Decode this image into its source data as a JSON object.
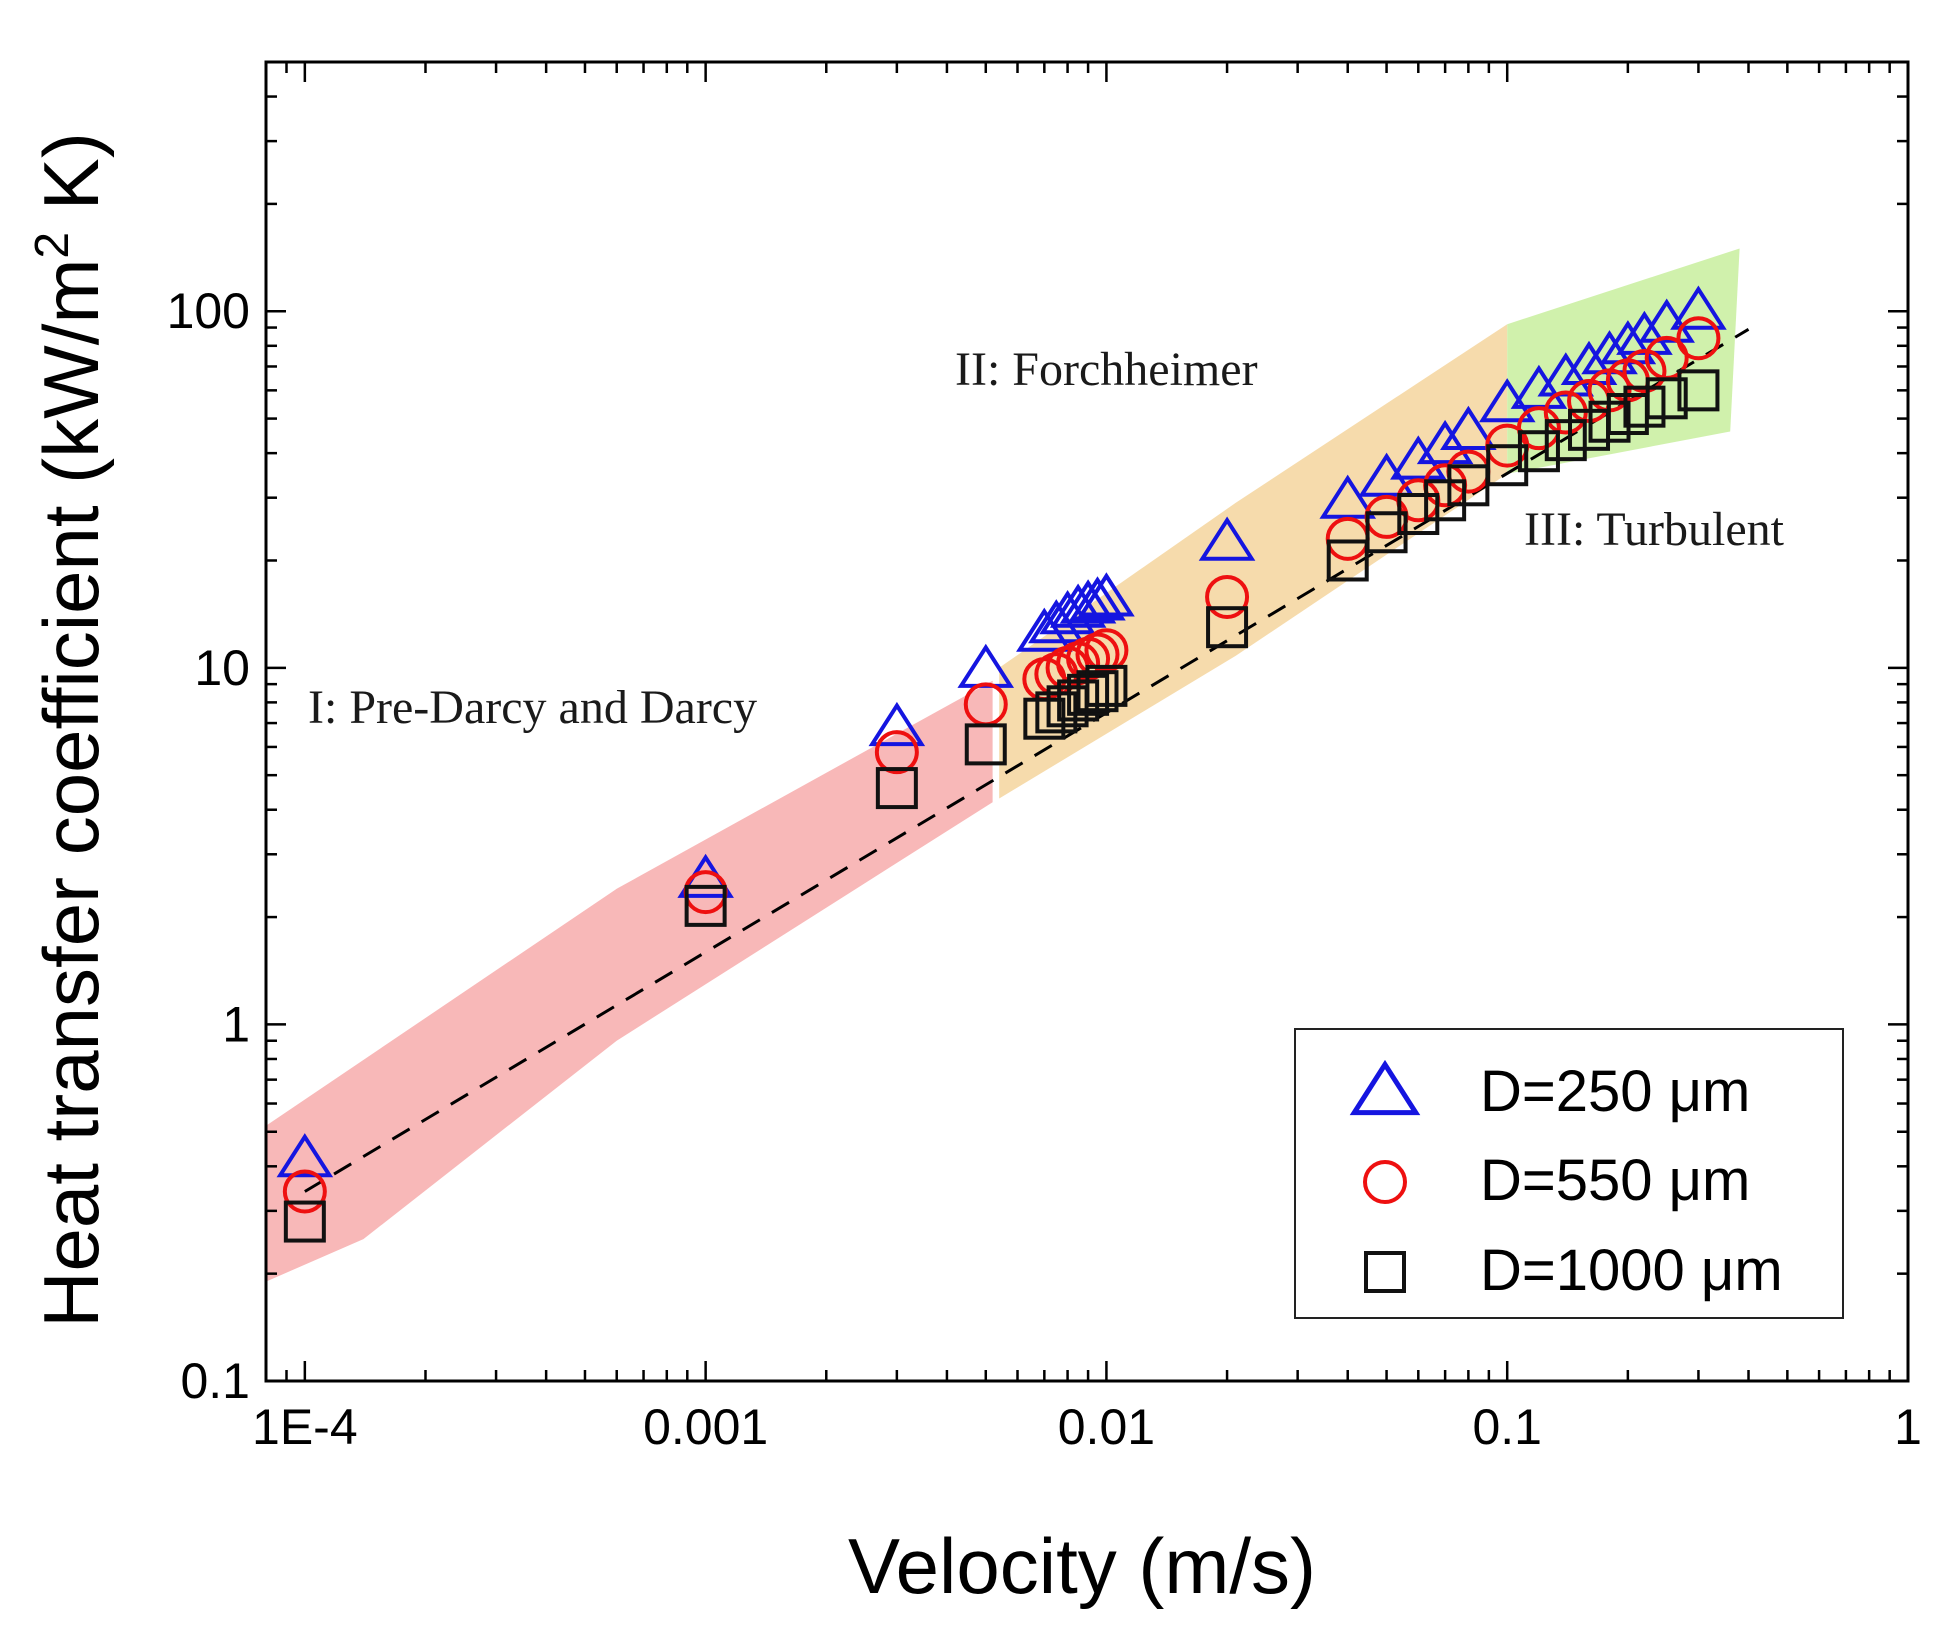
{
  "chart_data": {
    "type": "scatter",
    "x_scale": "log",
    "y_scale": "log",
    "xlabel": "Velocity (m/s)",
    "ylabel": {
      "main": "Heat transfer coefficient (kW/m",
      "sup": "2",
      "tail": " K)"
    },
    "xlim": [
      8e-05,
      1
    ],
    "ylim": [
      0.1,
      500
    ],
    "x_ticks": [
      {
        "value": 0.0001,
        "label": "1E-4"
      },
      {
        "value": 0.001,
        "label": "0.001"
      },
      {
        "value": 0.01,
        "label": "0.01"
      },
      {
        "value": 0.1,
        "label": "0.1"
      },
      {
        "value": 1,
        "label": "1"
      }
    ],
    "y_ticks": [
      {
        "value": 0.1,
        "label": "0.1"
      },
      {
        "value": 1,
        "label": "1"
      },
      {
        "value": 10,
        "label": "10"
      },
      {
        "value": 100,
        "label": "100"
      }
    ],
    "regions": [
      {
        "name": "region-pre-darcy",
        "label": "I: Pre-Darcy and Darcy",
        "color": "#f8b4b4",
        "polygon": [
          [
            8e-05,
            0.52
          ],
          [
            0.0006,
            2.4
          ],
          [
            0.0052,
            9.2
          ],
          [
            0.0052,
            4.2
          ],
          [
            0.0006,
            0.9
          ],
          [
            0.00014,
            0.25
          ],
          [
            8e-05,
            0.19
          ]
        ]
      },
      {
        "name": "region-forchheimer",
        "label": "II: Forchheimer",
        "color": "#f5d9a8",
        "polygon": [
          [
            0.0054,
            10.0
          ],
          [
            0.0054,
            4.3
          ],
          [
            0.021,
            10.8
          ],
          [
            0.1,
            35
          ],
          [
            0.1,
            92
          ],
          [
            0.021,
            29
          ],
          [
            0.0054,
            10.0
          ]
        ]
      },
      {
        "name": "region-turbulent",
        "label": "III: Turbulent",
        "color": "#cdf0a8",
        "polygon": [
          [
            0.1,
            92
          ],
          [
            0.38,
            150
          ],
          [
            0.36,
            46
          ],
          [
            0.1,
            35
          ]
        ]
      }
    ],
    "fit_line": {
      "style": "dashed",
      "points": [
        [
          0.0001,
          0.34
        ],
        [
          0.4,
          89
        ]
      ]
    },
    "series": [
      {
        "name": "D=250 μm",
        "marker": "triangle",
        "color": "#1515e0",
        "x": [
          0.0001,
          0.001,
          0.003,
          0.005,
          0.007,
          0.0075,
          0.008,
          0.0085,
          0.009,
          0.0095,
          0.01,
          0.02,
          0.04,
          0.05,
          0.06,
          0.07,
          0.08,
          0.1,
          0.12,
          0.14,
          0.16,
          0.18,
          0.2,
          0.22,
          0.25,
          0.3
        ],
        "y": [
          0.42,
          2.55,
          6.8,
          9.9,
          12.5,
          13.2,
          14.0,
          14.6,
          15.0,
          15.3,
          15.7,
          22.5,
          29.5,
          34.0,
          38.0,
          42.0,
          46.0,
          55.0,
          60.0,
          65.0,
          70.0,
          75.0,
          80.0,
          85.0,
          92.0,
          100.0
        ]
      },
      {
        "name": "D=550 μm",
        "marker": "circle",
        "color": "#ee1010",
        "x": [
          0.0001,
          0.001,
          0.003,
          0.005,
          0.007,
          0.0075,
          0.008,
          0.0085,
          0.009,
          0.0095,
          0.01,
          0.02,
          0.04,
          0.05,
          0.06,
          0.07,
          0.08,
          0.1,
          0.12,
          0.14,
          0.16,
          0.18,
          0.2,
          0.22,
          0.25,
          0.3
        ],
        "y": [
          0.34,
          2.35,
          5.8,
          7.9,
          9.3,
          9.6,
          10.0,
          10.3,
          10.6,
          10.9,
          11.2,
          15.8,
          23.0,
          26.5,
          29.5,
          32.5,
          35.5,
          42.0,
          47.0,
          52.0,
          56.0,
          60.0,
          64.0,
          68.0,
          74.0,
          84.0
        ]
      },
      {
        "name": "D=1000 μm",
        "marker": "square",
        "color": "#111111",
        "x": [
          0.0001,
          0.001,
          0.003,
          0.005,
          0.007,
          0.0075,
          0.008,
          0.0085,
          0.009,
          0.0095,
          0.01,
          0.02,
          0.04,
          0.05,
          0.06,
          0.07,
          0.08,
          0.1,
          0.12,
          0.14,
          0.16,
          0.18,
          0.2,
          0.22,
          0.25,
          0.3
        ],
        "y": [
          0.28,
          2.15,
          4.6,
          6.1,
          7.2,
          7.5,
          7.8,
          8.1,
          8.4,
          8.6,
          8.9,
          13.0,
          20.0,
          24.0,
          27.0,
          29.5,
          32.5,
          37.0,
          40.5,
          43.5,
          46.5,
          49.0,
          51.5,
          54.0,
          57.0,
          60.0
        ]
      }
    ],
    "legend": {
      "position": "bottom-right",
      "border": true
    },
    "grid": false
  }
}
